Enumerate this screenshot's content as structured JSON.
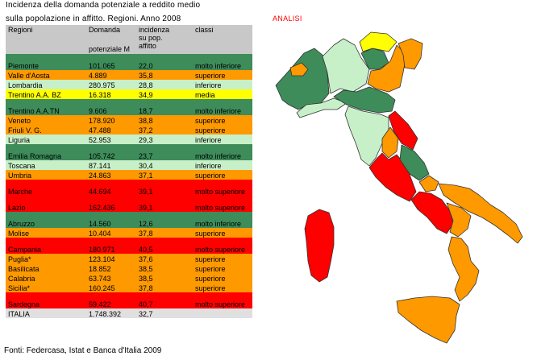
{
  "title_line1": "Incidenza della domanda potenziale a reddito medio",
  "title_line2": "sulla popolazione in affitto. Regioni. Anno 2008",
  "analysis_label": "ANALISI",
  "source": "Fonti: Federcasa, Istat e Banca d'Italia 2009",
  "headers": {
    "regioni": "Regioni",
    "domanda_top": "Domanda",
    "domanda_bottom": "potenziale M",
    "incidenza": [
      "incidenza",
      "su pop.",
      "affitto"
    ],
    "classi": "classi"
  },
  "colors": {
    "molto inferiore": "#3d8c5a",
    "inferiore": "#c8f0c8",
    "media": "#ffff00",
    "superiore": "#ff9900",
    "molto superiore": "#ff0000",
    "total": "#e0e0e0",
    "header": "#c8c8c8"
  },
  "chart_data": {
    "type": "table",
    "columns": [
      "Regioni",
      "Domanda potenziale M",
      "incidenza su pop. affitto",
      "classi"
    ],
    "rows": [
      {
        "region": "Piemonte",
        "domanda": "101.065",
        "incidenza": "22,0",
        "classe": "molto inferiore"
      },
      {
        "region": "Valle d'Aosta",
        "domanda": "4.889",
        "incidenza": "35,8",
        "classe": "superiore"
      },
      {
        "region": "Lombardia",
        "domanda": "280.975",
        "incidenza": "28,8",
        "classe": "inferiore"
      },
      {
        "region": "Trentino A.A. BZ",
        "domanda": "16.318",
        "incidenza": "34,9",
        "classe": "media"
      },
      {
        "region": "Trentino A.A.TN",
        "domanda": "9.606",
        "incidenza": "18,7",
        "classe": "molto inferiore"
      },
      {
        "region": "Veneto",
        "domanda": "178.920",
        "incidenza": "38,8",
        "classe": "superiore"
      },
      {
        "region": "Friuli V. G.",
        "domanda": "47.488",
        "incidenza": "37,2",
        "classe": "superiore"
      },
      {
        "region": "Liguria",
        "domanda": "52.953",
        "incidenza": "29,3",
        "classe": "inferiore"
      },
      {
        "region": "Emilia Romagna",
        "domanda": "105.742",
        "incidenza": "23,7",
        "classe": "molto inferiore"
      },
      {
        "region": "Toscana",
        "domanda": "87.141",
        "incidenza": "30,4",
        "classe": "inferiore"
      },
      {
        "region": "Umbria",
        "domanda": "24.863",
        "incidenza": "37,1",
        "classe": "superiore"
      },
      {
        "region": "Marche",
        "domanda": "44.694",
        "incidenza": "39,1",
        "classe": "molto superiore"
      },
      {
        "region": "Lazio",
        "domanda": "162.436",
        "incidenza": "39,1",
        "classe": "molto superiore"
      },
      {
        "region": "Abruzzo",
        "domanda": "14.560",
        "incidenza": "12,6",
        "classe": "molto inferiore"
      },
      {
        "region": "Molise",
        "domanda": "10.404",
        "incidenza": "37,8",
        "classe": "superiore"
      },
      {
        "region": "Campania",
        "domanda": "180.971",
        "incidenza": "40,5",
        "classe": "molto superiore"
      },
      {
        "region": "Puglia*",
        "domanda": "123.104",
        "incidenza": "37,6",
        "classe": "superiore"
      },
      {
        "region": "Basilicata",
        "domanda": "18.852",
        "incidenza": "38,5",
        "classe": "superiore"
      },
      {
        "region": "Calabria",
        "domanda": "63.743",
        "incidenza": "38,5",
        "classe": "superiore"
      },
      {
        "region": "Sicilia*",
        "domanda": "160.245",
        "incidenza": "37,8",
        "classe": "superiore"
      },
      {
        "region": "Sardegna",
        "domanda": "59.422",
        "incidenza": "40,7",
        "classe": "molto superiore"
      }
    ],
    "total": {
      "region": "ITALIA",
      "domanda": "1.748.392",
      "incidenza": "32,7"
    }
  }
}
